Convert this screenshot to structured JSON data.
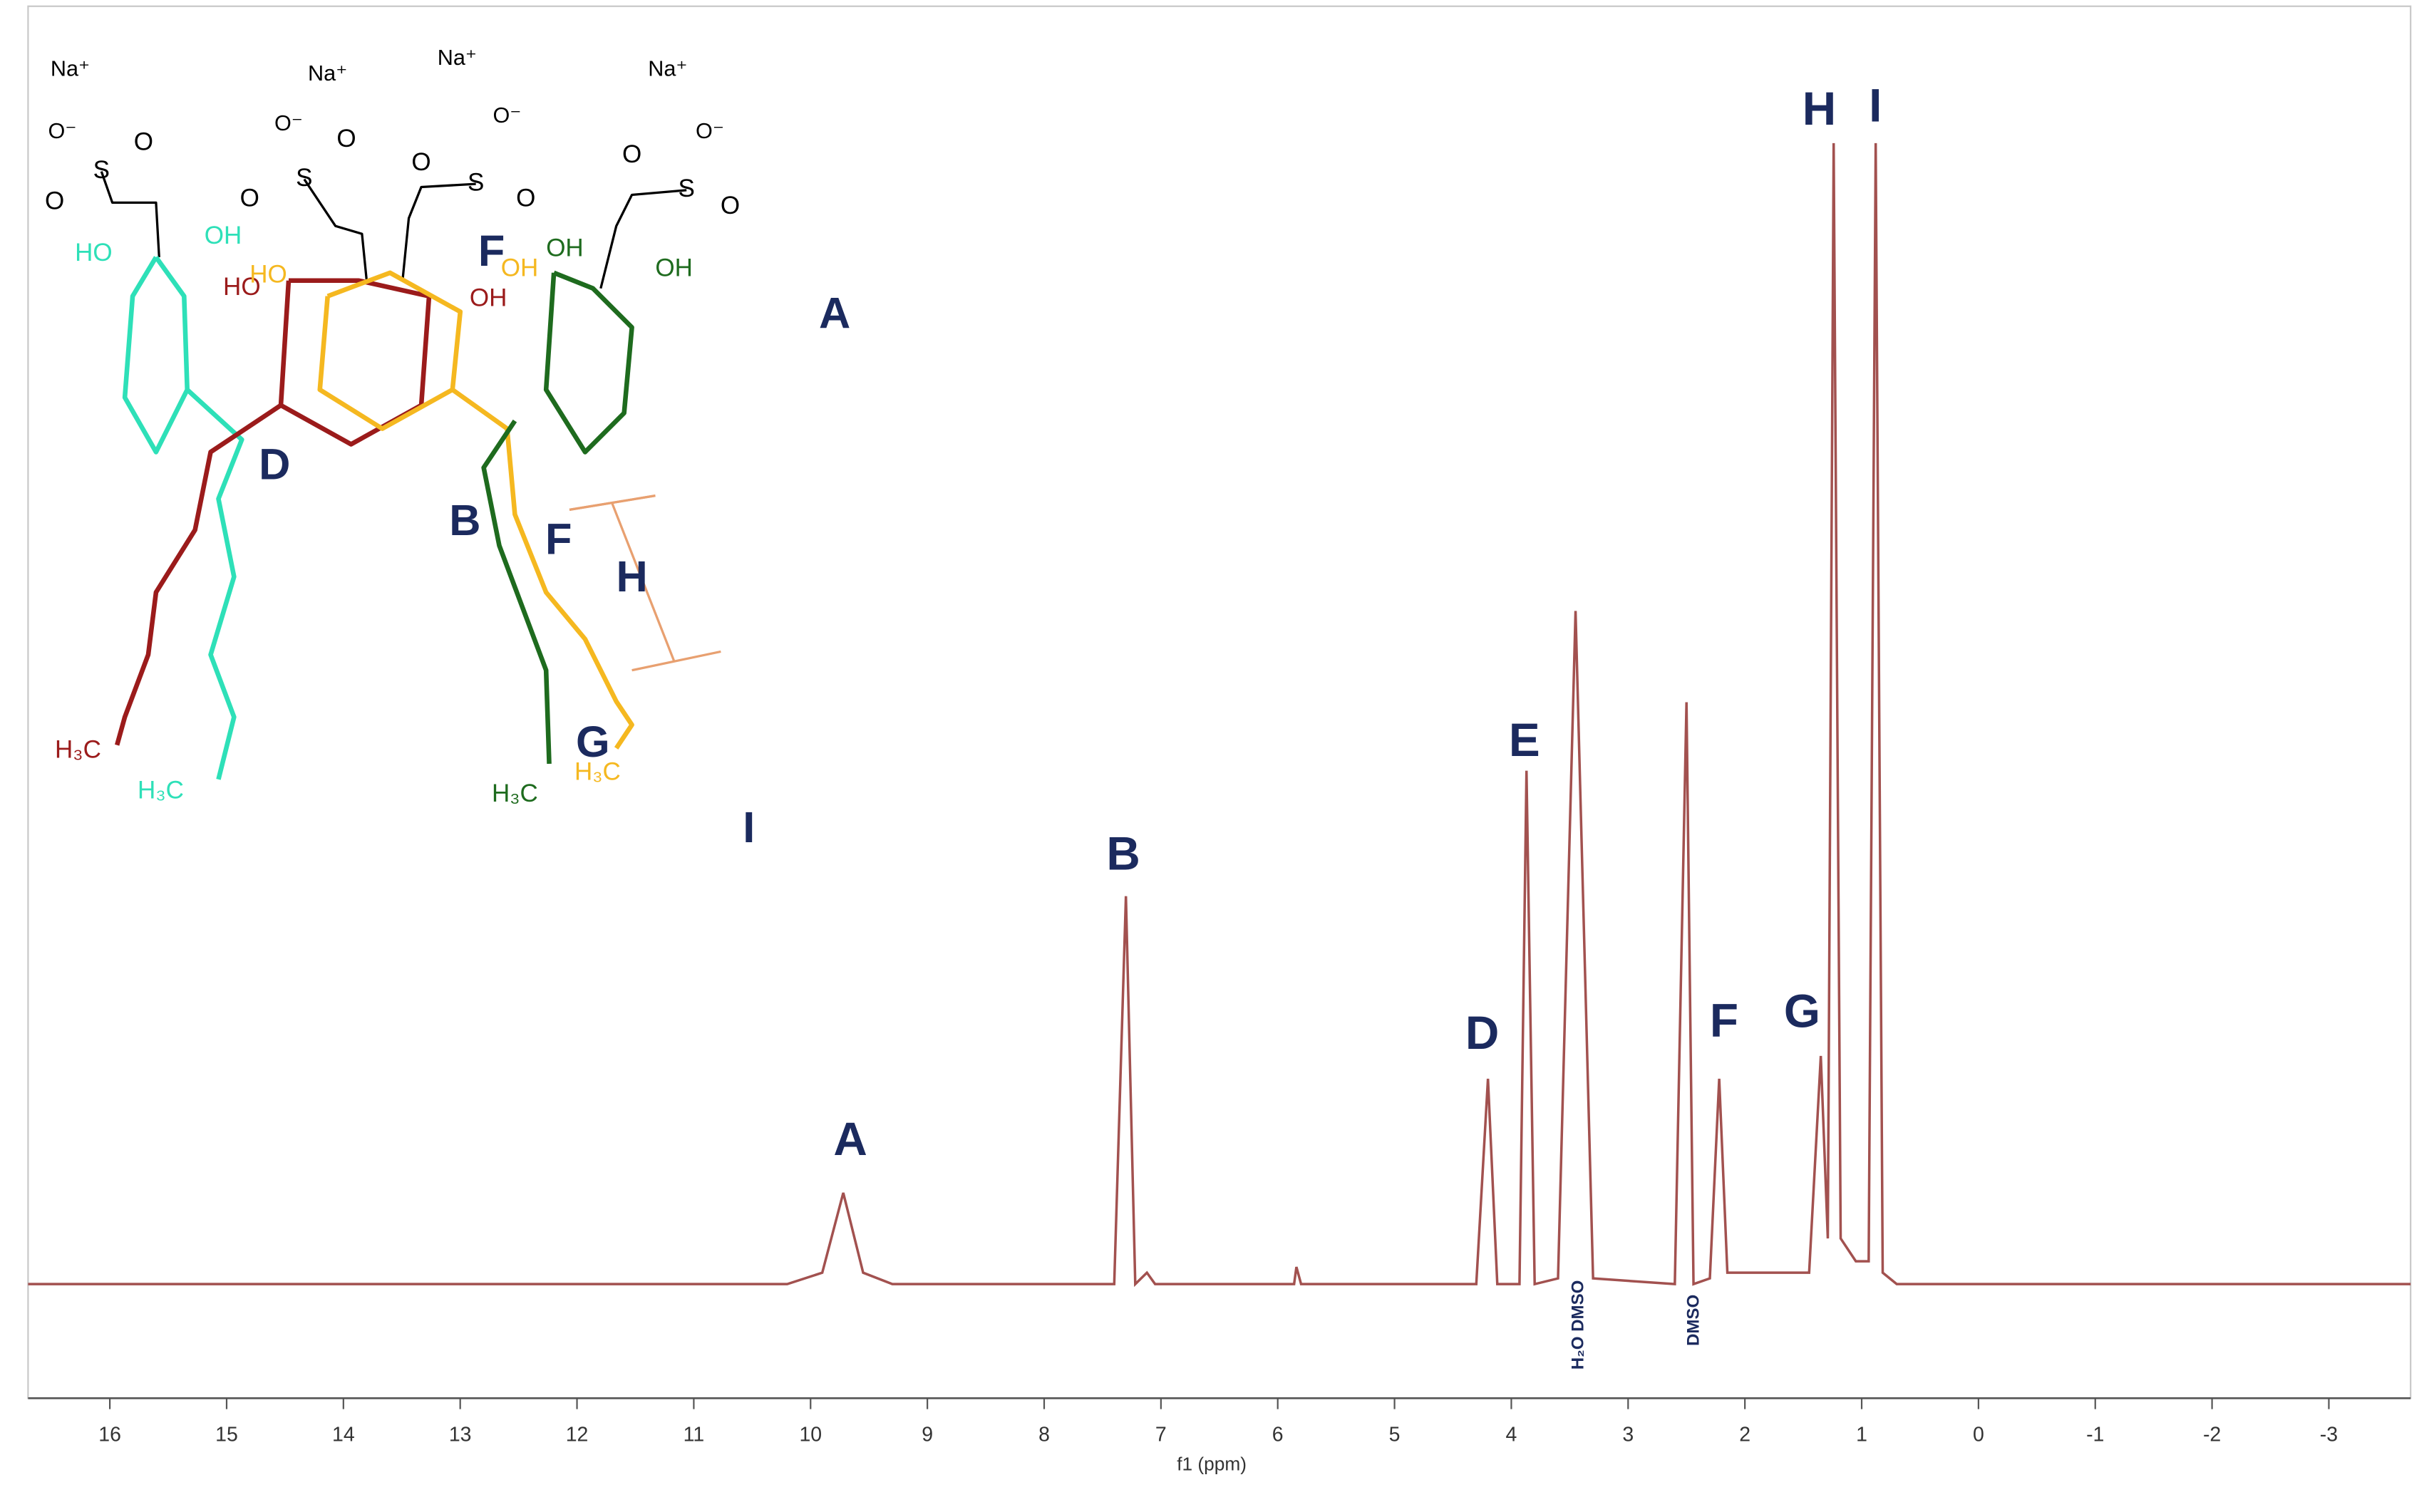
{
  "chart_data": {
    "type": "line",
    "x_label": "f1 (ppm)",
    "xlim": [
      16.7,
      -3.7
    ],
    "xticks": [
      16,
      15,
      14,
      13,
      12,
      11,
      10,
      9,
      8,
      7,
      6,
      5,
      4,
      3,
      2,
      1,
      0,
      -1,
      -2,
      -3
    ],
    "ylim": [
      -10,
      112
    ],
    "series": [
      {
        "color": "#a2514f",
        "x": [
          16.7,
          10.2,
          9.9,
          9.72,
          9.55,
          9.3,
          7.4,
          7.3,
          7.22,
          7.12,
          7.05,
          5.86,
          5.84,
          5.8,
          4.3,
          4.2,
          4.12,
          3.93,
          3.87,
          3.8,
          3.6,
          3.45,
          3.3,
          2.6,
          2.5,
          2.44,
          2.3,
          2.22,
          2.15,
          1.45,
          1.35,
          1.29,
          1.24,
          1.18,
          1.05,
          0.94,
          0.88,
          0.82,
          0.7,
          -3.7
        ],
        "values": [
          0,
          0,
          1,
          8,
          1,
          0,
          0,
          34,
          0,
          1,
          0,
          0,
          1.5,
          0,
          0,
          18,
          0,
          0,
          45,
          0,
          0.5,
          59,
          0.5,
          0,
          51,
          0,
          0.5,
          18,
          1,
          1,
          20,
          4,
          100,
          4,
          2,
          2,
          100,
          1,
          0,
          0
        ]
      }
    ],
    "peak_labels": [
      "A",
      "B",
      "D",
      "E",
      "F",
      "G",
      "H",
      "I"
    ],
    "solvent_labels": [
      "H₂O DMSO",
      "DMSO"
    ]
  },
  "structure": {
    "labels": [
      "Na⁺",
      "Na⁺",
      "Na⁺",
      "Na⁺",
      "O⁻",
      "O⁻",
      "O⁻",
      "O⁻",
      "S",
      "O",
      "O",
      "S",
      "O",
      "O",
      "S",
      "O",
      "O",
      "S",
      "O",
      "O",
      "HO",
      "OH",
      "HO",
      "HO",
      "OH",
      "OH",
      "OH",
      "OH",
      "H₃C",
      "H₃C",
      "H₃C",
      "H₃C",
      "D",
      "B",
      "F",
      "H",
      "G",
      "F",
      "A",
      "I"
    ]
  }
}
